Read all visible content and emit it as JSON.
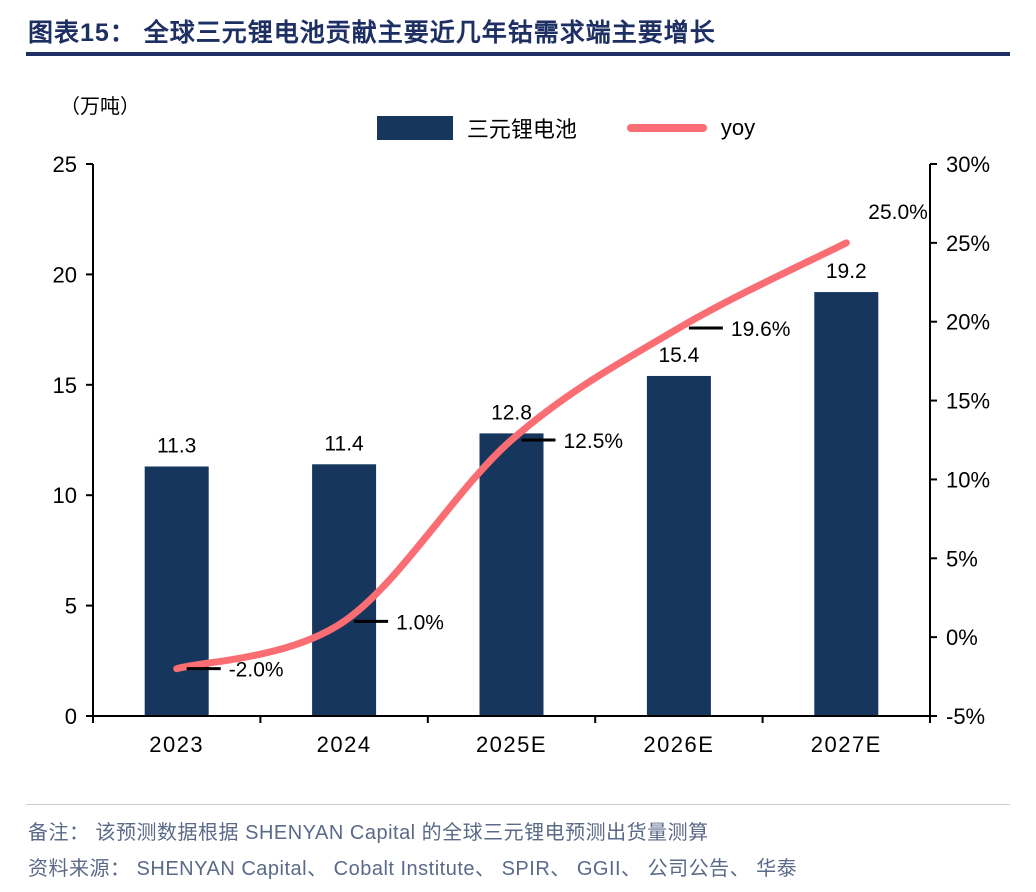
{
  "header": {
    "title": "图表15：  全球三元锂电池贡献主要近几年钴需求端主要增长"
  },
  "footer": {
    "note": "备注： 该预测数据根据 SHENYAN Capital 的全球三元锂电预测出货量测算",
    "source": "资料来源： SHENYAN Capital、 Cobalt Institute、 SPIR、 GGII、 公司公告、 华泰"
  },
  "colors": {
    "title": "#1d2f63",
    "bar": "#17365d",
    "line": "#fa6e73",
    "axis": "#000000",
    "footer_text": "#5a6a88"
  },
  "chart_data": {
    "type": "combo",
    "categories": [
      "2023",
      "2024",
      "2025E",
      "2026E",
      "2027E"
    ],
    "series": [
      {
        "name": "三元锂电池",
        "type": "bar",
        "axis": "left",
        "color": "#17365d",
        "values": [
          11.3,
          11.4,
          12.8,
          15.4,
          19.2
        ],
        "labels": [
          "11.3",
          "11.4",
          "12.8",
          "15.4",
          "19.2"
        ]
      },
      {
        "name": "yoy",
        "type": "line",
        "axis": "right",
        "color": "#fa6e73",
        "values": [
          -2.0,
          1.0,
          12.5,
          19.6,
          25.0
        ],
        "labels": [
          "-2.0%",
          "1.0%",
          "12.5%",
          "19.6%",
          "25.0%"
        ]
      }
    ],
    "left_axis": {
      "title": "（万吨）",
      "min": 0,
      "max": 25,
      "step": 5,
      "ticks": [
        "0",
        "5",
        "10",
        "15",
        "20",
        "25"
      ]
    },
    "right_axis": {
      "min": -5,
      "max": 30,
      "step": 5,
      "ticks": [
        "-5%",
        "0%",
        "5%",
        "10%",
        "15%",
        "20%",
        "25%",
        "30%"
      ]
    },
    "grid": false,
    "legend_position": "top"
  }
}
